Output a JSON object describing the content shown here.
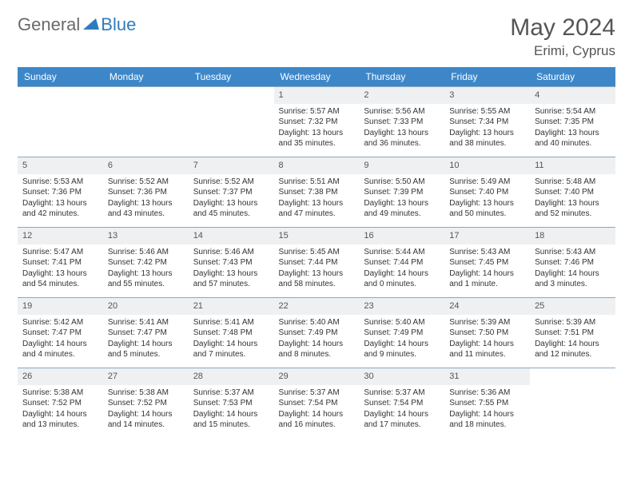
{
  "logo": {
    "general": "General",
    "blue": "Blue"
  },
  "title": "May 2024",
  "location": "Erimi, Cyprus",
  "colors": {
    "header_bg": "#3d87c9",
    "header_text": "#ffffff",
    "daynum_bg": "#eef0f2",
    "border": "#8aa8c2",
    "logo_gray": "#6a6a6a",
    "logo_blue": "#2f7bbf"
  },
  "weekdays": [
    "Sunday",
    "Monday",
    "Tuesday",
    "Wednesday",
    "Thursday",
    "Friday",
    "Saturday"
  ],
  "weeks": [
    [
      {
        "n": "",
        "sr": "",
        "ss": "",
        "d1": "",
        "d2": ""
      },
      {
        "n": "",
        "sr": "",
        "ss": "",
        "d1": "",
        "d2": ""
      },
      {
        "n": "",
        "sr": "",
        "ss": "",
        "d1": "",
        "d2": ""
      },
      {
        "n": "1",
        "sr": "Sunrise: 5:57 AM",
        "ss": "Sunset: 7:32 PM",
        "d1": "Daylight: 13 hours",
        "d2": "and 35 minutes."
      },
      {
        "n": "2",
        "sr": "Sunrise: 5:56 AM",
        "ss": "Sunset: 7:33 PM",
        "d1": "Daylight: 13 hours",
        "d2": "and 36 minutes."
      },
      {
        "n": "3",
        "sr": "Sunrise: 5:55 AM",
        "ss": "Sunset: 7:34 PM",
        "d1": "Daylight: 13 hours",
        "d2": "and 38 minutes."
      },
      {
        "n": "4",
        "sr": "Sunrise: 5:54 AM",
        "ss": "Sunset: 7:35 PM",
        "d1": "Daylight: 13 hours",
        "d2": "and 40 minutes."
      }
    ],
    [
      {
        "n": "5",
        "sr": "Sunrise: 5:53 AM",
        "ss": "Sunset: 7:36 PM",
        "d1": "Daylight: 13 hours",
        "d2": "and 42 minutes."
      },
      {
        "n": "6",
        "sr": "Sunrise: 5:52 AM",
        "ss": "Sunset: 7:36 PM",
        "d1": "Daylight: 13 hours",
        "d2": "and 43 minutes."
      },
      {
        "n": "7",
        "sr": "Sunrise: 5:52 AM",
        "ss": "Sunset: 7:37 PM",
        "d1": "Daylight: 13 hours",
        "d2": "and 45 minutes."
      },
      {
        "n": "8",
        "sr": "Sunrise: 5:51 AM",
        "ss": "Sunset: 7:38 PM",
        "d1": "Daylight: 13 hours",
        "d2": "and 47 minutes."
      },
      {
        "n": "9",
        "sr": "Sunrise: 5:50 AM",
        "ss": "Sunset: 7:39 PM",
        "d1": "Daylight: 13 hours",
        "d2": "and 49 minutes."
      },
      {
        "n": "10",
        "sr": "Sunrise: 5:49 AM",
        "ss": "Sunset: 7:40 PM",
        "d1": "Daylight: 13 hours",
        "d2": "and 50 minutes."
      },
      {
        "n": "11",
        "sr": "Sunrise: 5:48 AM",
        "ss": "Sunset: 7:40 PM",
        "d1": "Daylight: 13 hours",
        "d2": "and 52 minutes."
      }
    ],
    [
      {
        "n": "12",
        "sr": "Sunrise: 5:47 AM",
        "ss": "Sunset: 7:41 PM",
        "d1": "Daylight: 13 hours",
        "d2": "and 54 minutes."
      },
      {
        "n": "13",
        "sr": "Sunrise: 5:46 AM",
        "ss": "Sunset: 7:42 PM",
        "d1": "Daylight: 13 hours",
        "d2": "and 55 minutes."
      },
      {
        "n": "14",
        "sr": "Sunrise: 5:46 AM",
        "ss": "Sunset: 7:43 PM",
        "d1": "Daylight: 13 hours",
        "d2": "and 57 minutes."
      },
      {
        "n": "15",
        "sr": "Sunrise: 5:45 AM",
        "ss": "Sunset: 7:44 PM",
        "d1": "Daylight: 13 hours",
        "d2": "and 58 minutes."
      },
      {
        "n": "16",
        "sr": "Sunrise: 5:44 AM",
        "ss": "Sunset: 7:44 PM",
        "d1": "Daylight: 14 hours",
        "d2": "and 0 minutes."
      },
      {
        "n": "17",
        "sr": "Sunrise: 5:43 AM",
        "ss": "Sunset: 7:45 PM",
        "d1": "Daylight: 14 hours",
        "d2": "and 1 minute."
      },
      {
        "n": "18",
        "sr": "Sunrise: 5:43 AM",
        "ss": "Sunset: 7:46 PM",
        "d1": "Daylight: 14 hours",
        "d2": "and 3 minutes."
      }
    ],
    [
      {
        "n": "19",
        "sr": "Sunrise: 5:42 AM",
        "ss": "Sunset: 7:47 PM",
        "d1": "Daylight: 14 hours",
        "d2": "and 4 minutes."
      },
      {
        "n": "20",
        "sr": "Sunrise: 5:41 AM",
        "ss": "Sunset: 7:47 PM",
        "d1": "Daylight: 14 hours",
        "d2": "and 5 minutes."
      },
      {
        "n": "21",
        "sr": "Sunrise: 5:41 AM",
        "ss": "Sunset: 7:48 PM",
        "d1": "Daylight: 14 hours",
        "d2": "and 7 minutes."
      },
      {
        "n": "22",
        "sr": "Sunrise: 5:40 AM",
        "ss": "Sunset: 7:49 PM",
        "d1": "Daylight: 14 hours",
        "d2": "and 8 minutes."
      },
      {
        "n": "23",
        "sr": "Sunrise: 5:40 AM",
        "ss": "Sunset: 7:49 PM",
        "d1": "Daylight: 14 hours",
        "d2": "and 9 minutes."
      },
      {
        "n": "24",
        "sr": "Sunrise: 5:39 AM",
        "ss": "Sunset: 7:50 PM",
        "d1": "Daylight: 14 hours",
        "d2": "and 11 minutes."
      },
      {
        "n": "25",
        "sr": "Sunrise: 5:39 AM",
        "ss": "Sunset: 7:51 PM",
        "d1": "Daylight: 14 hours",
        "d2": "and 12 minutes."
      }
    ],
    [
      {
        "n": "26",
        "sr": "Sunrise: 5:38 AM",
        "ss": "Sunset: 7:52 PM",
        "d1": "Daylight: 14 hours",
        "d2": "and 13 minutes."
      },
      {
        "n": "27",
        "sr": "Sunrise: 5:38 AM",
        "ss": "Sunset: 7:52 PM",
        "d1": "Daylight: 14 hours",
        "d2": "and 14 minutes."
      },
      {
        "n": "28",
        "sr": "Sunrise: 5:37 AM",
        "ss": "Sunset: 7:53 PM",
        "d1": "Daylight: 14 hours",
        "d2": "and 15 minutes."
      },
      {
        "n": "29",
        "sr": "Sunrise: 5:37 AM",
        "ss": "Sunset: 7:54 PM",
        "d1": "Daylight: 14 hours",
        "d2": "and 16 minutes."
      },
      {
        "n": "30",
        "sr": "Sunrise: 5:37 AM",
        "ss": "Sunset: 7:54 PM",
        "d1": "Daylight: 14 hours",
        "d2": "and 17 minutes."
      },
      {
        "n": "31",
        "sr": "Sunrise: 5:36 AM",
        "ss": "Sunset: 7:55 PM",
        "d1": "Daylight: 14 hours",
        "d2": "and 18 minutes."
      },
      {
        "n": "",
        "sr": "",
        "ss": "",
        "d1": "",
        "d2": ""
      }
    ]
  ]
}
